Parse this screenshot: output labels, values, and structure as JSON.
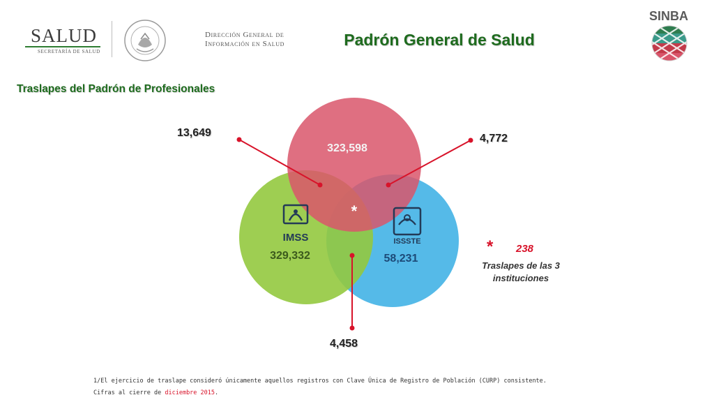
{
  "header": {
    "salud_logo_text": "SALUD",
    "salud_subtitle": "SECRETARÍA DE SALUD",
    "seal_text": "ESTADOS UNIDOS MEXICANOS",
    "agency_line1": "Dirección General de",
    "agency_line2": "Información en Salud",
    "page_title": "Padrón General de Salud",
    "sinba_label": "SINBA"
  },
  "section_title": "Traslapes del Padrón de Profesionales",
  "venn": {
    "sets": [
      {
        "name": "Profesionales (rojo)",
        "value": "323,598",
        "color": "#d9566b"
      },
      {
        "name": "IMSS",
        "value": "329,332",
        "color": "#94c93f",
        "logo_text": "IMSS"
      },
      {
        "name": "ISSSTE",
        "value": "58,231",
        "color": "#47b4e6",
        "logo_text": "ISSSTE"
      }
    ],
    "overlaps": {
      "red_imss": "13,649",
      "red_issste": "4,772",
      "imss_issste": "4,458",
      "all_three_marker": "*"
    },
    "callout_color": "#d8132a"
  },
  "legend": {
    "star": "*",
    "value": "238",
    "text_line1": "Traslapes de las 3",
    "text_line2": "instituciones"
  },
  "footnotes": {
    "note1": "1/El ejercicio de traslape consideró únicamente aquellos registros con Clave Única de Registro de Población (CURP) consistente.",
    "note2_prefix": "Cifras al cierre de ",
    "note2_highlight": "diciembre 2015",
    "note2_suffix": "."
  }
}
